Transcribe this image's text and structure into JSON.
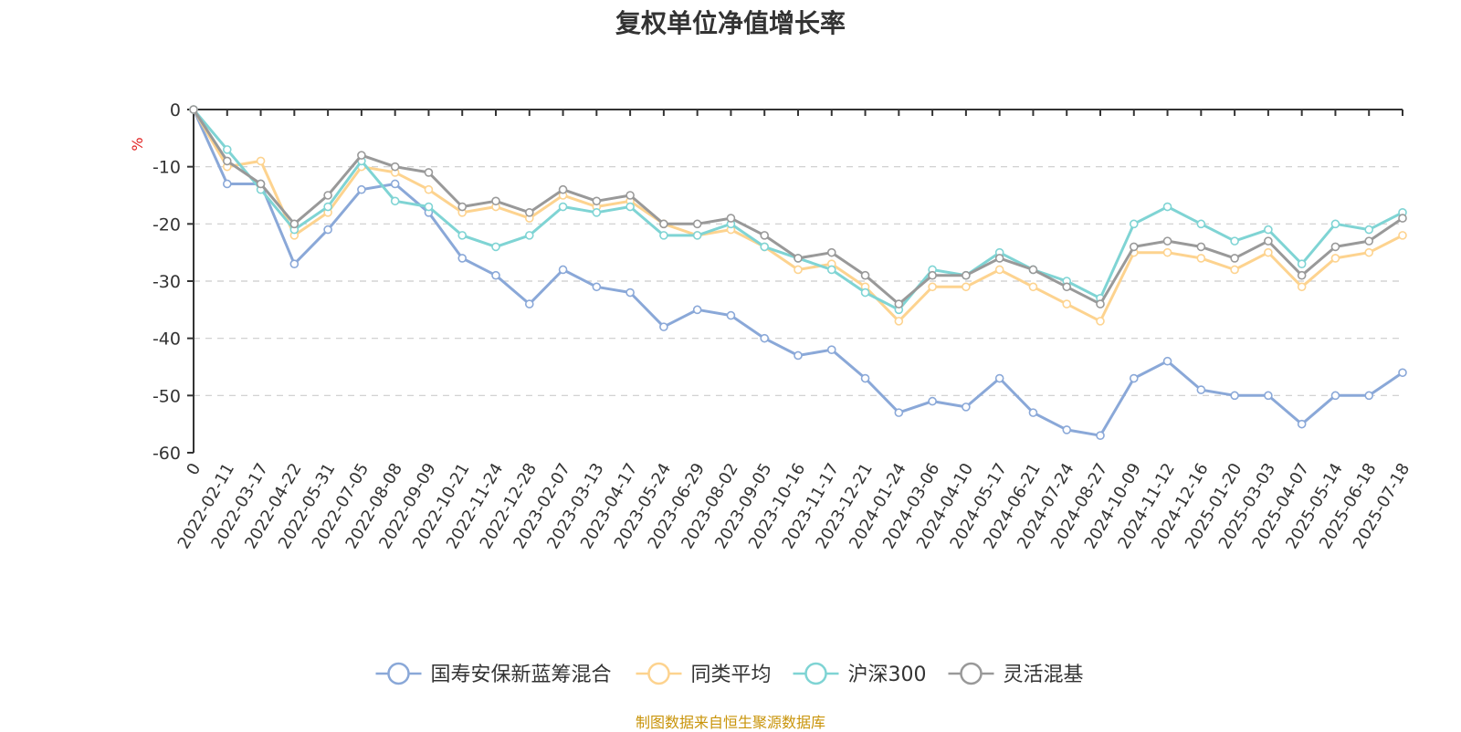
{
  "chart_data": {
    "type": "line",
    "title": "复权单位净值增长率",
    "ylabel": "%",
    "ylim": [
      -60,
      0
    ],
    "yticks": [
      0,
      -10,
      -20,
      -30,
      -40,
      -50,
      -60
    ],
    "grid": true,
    "legend_position": "bottom",
    "x": [
      "0",
      "2022-02-11",
      "2022-03-17",
      "2022-04-22",
      "2022-05-31",
      "2022-07-05",
      "2022-08-08",
      "2022-09-09",
      "2022-10-21",
      "2022-11-24",
      "2022-12-28",
      "2023-02-07",
      "2023-03-13",
      "2023-04-17",
      "2023-05-24",
      "2023-06-29",
      "2023-08-02",
      "2023-09-05",
      "2023-10-16",
      "2023-11-17",
      "2023-12-21",
      "2024-01-24",
      "2024-03-06",
      "2024-04-10",
      "2024-05-17",
      "2024-06-21",
      "2024-07-24",
      "2024-08-27",
      "2024-10-09",
      "2024-11-12",
      "2024-12-16",
      "2025-01-20",
      "2025-03-03",
      "2025-04-07",
      "2025-05-14",
      "2025-06-18",
      "2025-07-18"
    ],
    "series": [
      {
        "name": "国寿安保新蓝筹混合",
        "color": "#8aa8d8",
        "values": [
          0,
          -13,
          -13,
          -27,
          -21,
          -14,
          -13,
          -18,
          -26,
          -29,
          -34,
          -28,
          -31,
          -32,
          -38,
          -35,
          -36,
          -40,
          -43,
          -42,
          -47,
          -53,
          -51,
          -52,
          -47,
          -53,
          -56,
          -57,
          -47,
          -44,
          -49,
          -50,
          -50,
          -55,
          -50,
          -50,
          -46
        ]
      },
      {
        "name": "同类平均",
        "color": "#fdd38f",
        "values": [
          0,
          -10,
          -9,
          -22,
          -18,
          -10,
          -11,
          -14,
          -18,
          -17,
          -19,
          -15,
          -17,
          -16,
          -20,
          -22,
          -21,
          -24,
          -28,
          -27,
          -31,
          -37,
          -31,
          -31,
          -28,
          -31,
          -34,
          -37,
          -25,
          -25,
          -26,
          -28,
          -25,
          -31,
          -26,
          -25,
          -22
        ]
      },
      {
        "name": "沪深300",
        "color": "#7fd4d4",
        "values": [
          0,
          -7,
          -14,
          -21,
          -17,
          -9,
          -16,
          -17,
          -22,
          -24,
          -22,
          -17,
          -18,
          -17,
          -22,
          -22,
          -20,
          -24,
          -26,
          -28,
          -32,
          -35,
          -28,
          -29,
          -25,
          -28,
          -30,
          -33,
          -20,
          -17,
          -20,
          -23,
          -21,
          -27,
          -20,
          -21,
          -18
        ]
      },
      {
        "name": "灵活混基",
        "color": "#999999",
        "values": [
          0,
          -9,
          -13,
          -20,
          -15,
          -8,
          -10,
          -11,
          -17,
          -16,
          -18,
          -14,
          -16,
          -15,
          -20,
          -20,
          -19,
          -22,
          -26,
          -25,
          -29,
          -34,
          -29,
          -29,
          -26,
          -28,
          -31,
          -34,
          -24,
          -23,
          -24,
          -26,
          -23,
          -29,
          -24,
          -23,
          -19
        ]
      }
    ]
  },
  "footer": {
    "source_text": "制图数据来自恒生聚源数据库"
  }
}
